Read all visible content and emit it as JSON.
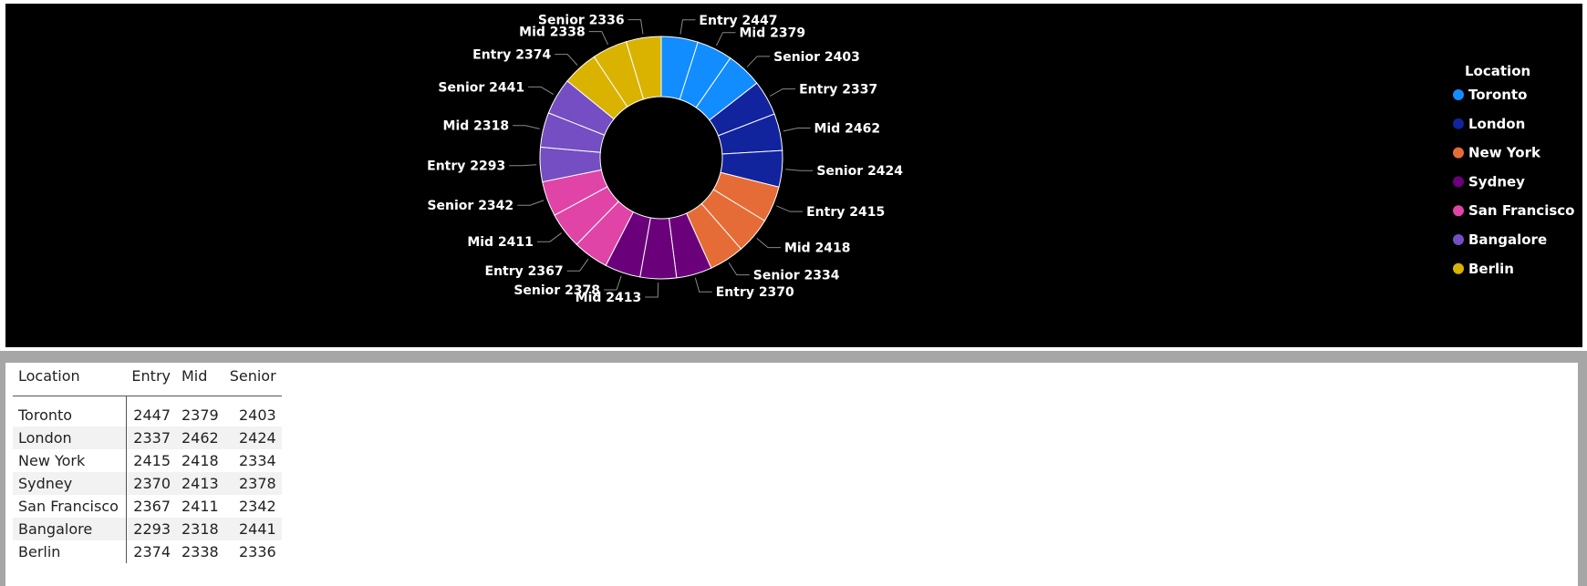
{
  "chart_data": {
    "type": "pie",
    "legend_title": "Location",
    "legend_position": "right",
    "categories": [
      "Toronto",
      "London",
      "New York",
      "Sydney",
      "San Francisco",
      "Bangalore",
      "Berlin"
    ],
    "levels": [
      "Entry",
      "Mid",
      "Senior"
    ],
    "colors": [
      "#118dff",
      "#12239e",
      "#e66c37",
      "#6b007b",
      "#e044a7",
      "#744ec2",
      "#d9b300"
    ],
    "series": [
      {
        "name": "Entry",
        "values": [
          2447,
          2337,
          2415,
          2370,
          2367,
          2293,
          2374
        ]
      },
      {
        "name": "Mid",
        "values": [
          2379,
          2462,
          2418,
          2413,
          2411,
          2318,
          2338
        ]
      },
      {
        "name": "Senior",
        "values": [
          2403,
          2424,
          2334,
          2378,
          2342,
          2441,
          2336
        ]
      }
    ]
  },
  "table": {
    "headers": [
      "Location",
      "Entry",
      "Mid",
      "Senior"
    ],
    "rows": [
      [
        "Toronto",
        "2447",
        "2379",
        "2403"
      ],
      [
        "London",
        "2337",
        "2462",
        "2424"
      ],
      [
        "New York",
        "2415",
        "2418",
        "2334"
      ],
      [
        "Sydney",
        "2370",
        "2413",
        "2378"
      ],
      [
        "San Francisco",
        "2367",
        "2411",
        "2342"
      ],
      [
        "Bangalore",
        "2293",
        "2318",
        "2441"
      ],
      [
        "Berlin",
        "2374",
        "2338",
        "2336"
      ]
    ]
  }
}
